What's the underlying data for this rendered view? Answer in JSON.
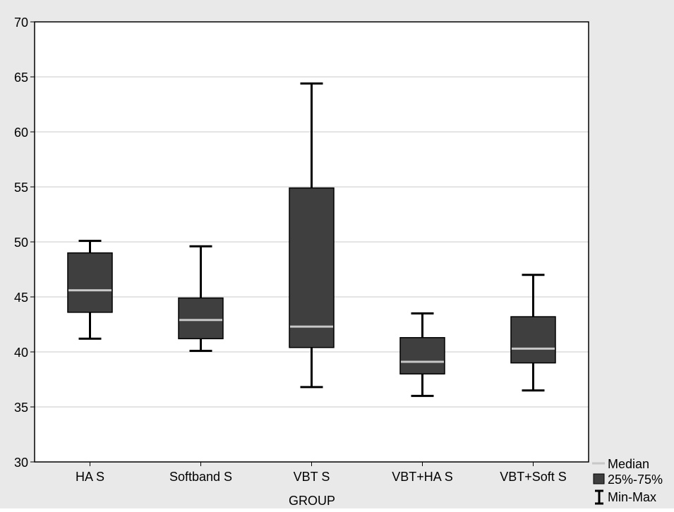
{
  "chart_data": {
    "type": "box",
    "categories": [
      "HA S",
      "Softband S",
      "VBT S",
      "VBT+HA S",
      "VBT+Soft S"
    ],
    "boxes": [
      {
        "min": 41.2,
        "q1": 43.6,
        "median": 45.6,
        "q3": 49.0,
        "max": 50.1
      },
      {
        "min": 40.1,
        "q1": 41.2,
        "median": 42.9,
        "q3": 44.9,
        "max": 49.6
      },
      {
        "min": 36.8,
        "q1": 40.4,
        "median": 42.3,
        "q3": 54.9,
        "max": 64.4
      },
      {
        "min": 36.0,
        "q1": 38.0,
        "median": 39.1,
        "q3": 41.3,
        "max": 43.5
      },
      {
        "min": 36.5,
        "q1": 39.0,
        "median": 40.3,
        "q3": 43.2,
        "max": 47.0
      }
    ],
    "xlabel": "GROUP",
    "ylabel": "",
    "ylim": [
      30,
      70
    ],
    "yticks": [
      30,
      35,
      40,
      45,
      50,
      55,
      60,
      65,
      70
    ],
    "grid": true,
    "legend": {
      "position": "bottom-right",
      "entries": [
        "Median",
        "25%-75%",
        "Min-Max"
      ]
    },
    "colors": {
      "box_fill": "#3f3f3f",
      "median": "#c8c8c8",
      "whisker": "#000000",
      "grid": "#c8c8c8",
      "outer_background": "#e9e9e9",
      "plot_background": "#ffffff"
    }
  }
}
